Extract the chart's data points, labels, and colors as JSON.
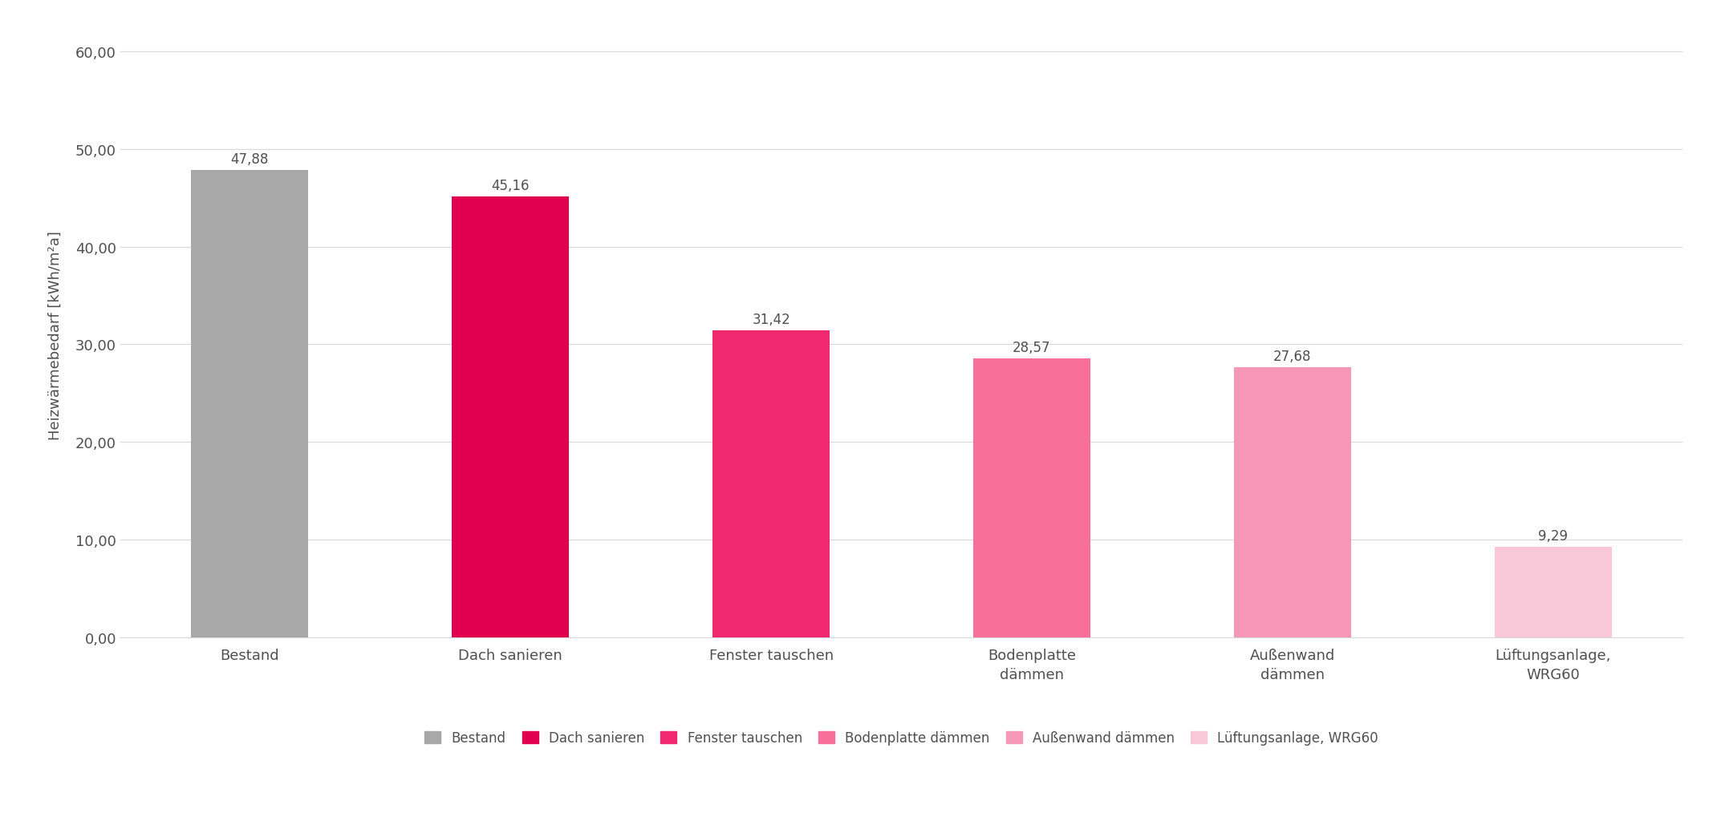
{
  "categories": [
    "Bestand",
    "Dach sanieren",
    "Fenster tauschen",
    "Bodenplatte\ndämmen",
    "Außenwand\ndämmen",
    "Lüftungsanlage,\nWRG60"
  ],
  "values": [
    47.88,
    45.16,
    31.42,
    28.57,
    27.68,
    9.29
  ],
  "bar_colors": [
    "#a8a8a8",
    "#e0004d",
    "#f0286e",
    "#f76f9a",
    "#f797b8",
    "#f9c8d8"
  ],
  "ylabel": "Heizwärmebedarf [kWh/m²a]",
  "ylim": [
    0,
    62
  ],
  "yticks": [
    0.0,
    10.0,
    20.0,
    30.0,
    40.0,
    50.0,
    60.0
  ],
  "ytick_labels": [
    "0,00",
    "10,00",
    "20,00",
    "30,00",
    "40,00",
    "50,00",
    "60,00"
  ],
  "value_labels": [
    "47,88",
    "45,16",
    "31,42",
    "28,57",
    "27,68",
    "9,29"
  ],
  "legend_labels": [
    "Bestand",
    "Dach sanieren",
    "Fenster tauschen",
    "Bodenplatte dämmen",
    "Außenwand dämmen",
    "Lüftungsanlage, WRG60"
  ],
  "background_color": "#ffffff",
  "grid_color": "#d8d8d8",
  "bar_width": 0.45,
  "label_fontsize": 13,
  "tick_fontsize": 13,
  "value_fontsize": 12,
  "legend_fontsize": 12,
  "text_color": "#505050"
}
